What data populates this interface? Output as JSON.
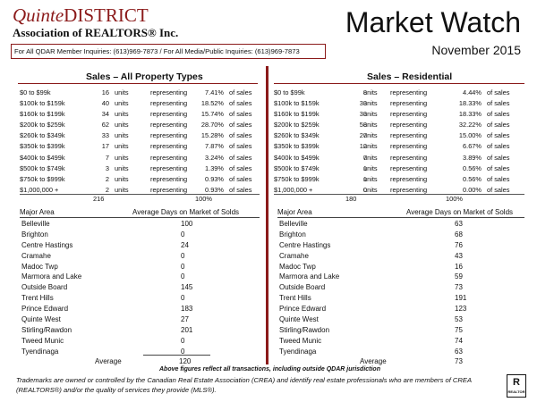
{
  "header": {
    "logo_quinte": "Quinte",
    "logo_district": "DISTRICT",
    "logo_association": "Association of REALTORS® Inc.",
    "title": "Market Watch",
    "date": "November 2015",
    "inquiries": "For All QDAR Member Inquiries: (613)969-7873 / For All Media/Public Inquiries: (613)969-7873"
  },
  "left_section": {
    "title": "Sales – All Property Types",
    "rows": [
      {
        "range": "$0 to $99k",
        "units": "16",
        "units_label": "units",
        "rep": "representing",
        "pct": "7.41%",
        "of": "of sales"
      },
      {
        "range": "$100k to $159k",
        "units": "40",
        "units_label": "units",
        "rep": "representing",
        "pct": "18.52%",
        "of": "of sales"
      },
      {
        "range": "$160k to $199k",
        "units": "34",
        "units_label": "units",
        "rep": "representing",
        "pct": "15.74%",
        "of": "of sales"
      },
      {
        "range": "$200k to $259k",
        "units": "62",
        "units_label": "units",
        "rep": "representing",
        "pct": "28.70%",
        "of": "of sales"
      },
      {
        "range": "$260k to $349k",
        "units": "33",
        "units_label": "units",
        "rep": "representing",
        "pct": "15.28%",
        "of": "of sales"
      },
      {
        "range": "$350k to $399k",
        "units": "17",
        "units_label": "units",
        "rep": "representing",
        "pct": "7.87%",
        "of": "of sales"
      },
      {
        "range": "$400k to $499k",
        "units": "7",
        "units_label": "units",
        "rep": "representing",
        "pct": "3.24%",
        "of": "of sales"
      },
      {
        "range": "$500k to $749k",
        "units": "3",
        "units_label": "units",
        "rep": "representing",
        "pct": "1.39%",
        "of": "of sales"
      },
      {
        "range": "$750k to $999k",
        "units": "2",
        "units_label": "units",
        "rep": "representing",
        "pct": "0.93%",
        "of": "of sales"
      },
      {
        "range": "$1,000,000 +",
        "units": "2",
        "units_label": "units",
        "rep": "representing",
        "pct": "0.93%",
        "of": "of sales"
      }
    ],
    "total_units": "216",
    "total_pct": "100%",
    "area_header_label": "Major Area",
    "area_header_value": "Average Days on Market of Solds",
    "areas": [
      {
        "name": "Belleville",
        "days": "100"
      },
      {
        "name": "Brighton",
        "days": "0"
      },
      {
        "name": "Centre Hastings",
        "days": "24"
      },
      {
        "name": "Cramahe",
        "days": "0"
      },
      {
        "name": "Madoc Twp",
        "days": "0"
      },
      {
        "name": "Marmora and Lake",
        "days": "0"
      },
      {
        "name": "Outside Board",
        "days": "145"
      },
      {
        "name": "Trent Hills",
        "days": "0"
      },
      {
        "name": "Prince Edward",
        "days": "183"
      },
      {
        "name": "Quinte West",
        "days": "27"
      },
      {
        "name": "Stirling/Rawdon",
        "days": "201"
      },
      {
        "name": "Tweed Munic",
        "days": "0"
      },
      {
        "name": "Tyendinaga",
        "days": "0"
      }
    ],
    "average_label": "Average",
    "average_value": "120"
  },
  "right_section": {
    "title": "Sales – Residential",
    "rows": [
      {
        "range": "$0 to $99k",
        "units": "8",
        "units_label": "units",
        "rep": "representing",
        "pct": "4.44%",
        "of": "of sales"
      },
      {
        "range": "$100k to $159k",
        "units": "33",
        "units_label": "units",
        "rep": "representing",
        "pct": "18.33%",
        "of": "of sales"
      },
      {
        "range": "$160k to $199k",
        "units": "33",
        "units_label": "units",
        "rep": "representing",
        "pct": "18.33%",
        "of": "of sales"
      },
      {
        "range": "$200k to $259k",
        "units": "58",
        "units_label": "units",
        "rep": "representing",
        "pct": "32.22%",
        "of": "of sales"
      },
      {
        "range": "$260k to $349k",
        "units": "27",
        "units_label": "units",
        "rep": "representing",
        "pct": "15.00%",
        "of": "of sales"
      },
      {
        "range": "$350k to $399k",
        "units": "12",
        "units_label": "units",
        "rep": "representing",
        "pct": "6.67%",
        "of": "of sales"
      },
      {
        "range": "$400k to $499k",
        "units": "7",
        "units_label": "units",
        "rep": "representing",
        "pct": "3.89%",
        "of": "of sales"
      },
      {
        "range": "$500k to $749k",
        "units": "1",
        "units_label": "units",
        "rep": "representing",
        "pct": "0.56%",
        "of": "of sales"
      },
      {
        "range": "$750k to $999k",
        "units": "1",
        "units_label": "units",
        "rep": "representing",
        "pct": "0.56%",
        "of": "of sales"
      },
      {
        "range": "$1,000,000 +",
        "units": "0",
        "units_label": "units",
        "rep": "representing",
        "pct": "0.00%",
        "of": "of sales"
      }
    ],
    "total_units": "180",
    "total_pct": "100%",
    "area_header_label": "Major Area",
    "area_header_value": "Average Days on Market of Solds",
    "areas": [
      {
        "name": "Belleville",
        "days": "63"
      },
      {
        "name": "Brighton",
        "days": "68"
      },
      {
        "name": "Centre Hastings",
        "days": "76"
      },
      {
        "name": "Cramahe",
        "days": "43"
      },
      {
        "name": "Madoc Twp",
        "days": "16"
      },
      {
        "name": "Marmora and Lake",
        "days": "59"
      },
      {
        "name": "Outside Board",
        "days": "73"
      },
      {
        "name": "Trent Hills",
        "days": "191"
      },
      {
        "name": "Prince Edward",
        "days": "123"
      },
      {
        "name": "Quinte West",
        "days": "53"
      },
      {
        "name": "Stirling/Rawdon",
        "days": "75"
      },
      {
        "name": "Tweed Munic",
        "days": "74"
      },
      {
        "name": "Tyendinaga",
        "days": "63"
      }
    ],
    "average_label": "Average",
    "average_value": "73"
  },
  "footnote": "Above figures reflect all transactions, including outside QDAR jurisdiction",
  "disclaimer": "Trademarks are owned or controlled by the Canadian Real Estate Association (CREA) and identify real estate professionals who are members of CREA (REALTORS®) and/or the quality of services they provide (MLS®).",
  "realtor_logo_text": "REALTOR",
  "colors": {
    "accent": "#8b1a1a"
  }
}
